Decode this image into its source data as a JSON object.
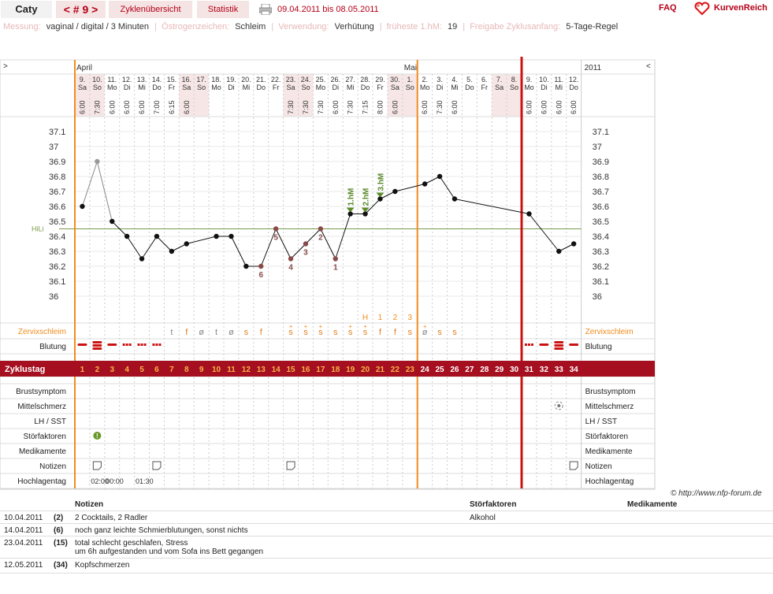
{
  "topbar": {
    "user": "Caty",
    "cycle": "< # 9 >",
    "overview": "Zyklenübersicht",
    "statistics": "Statistik",
    "date_range": "09.04.2011 bis 08.05.2011",
    "faq": "FAQ",
    "logo": "KurvenReich"
  },
  "info": {
    "measure_label": "Messung:",
    "measure_value": "vaginal / digital / 3 Minuten",
    "estrogen_label": "Östrogenzeichen:",
    "estrogen_value": "Schleim",
    "use_label": "Verwendung:",
    "use_value": "Verhütung",
    "earliest_label": "früheste 1.hM:",
    "earliest_value": "19",
    "release_label": "Freigabe Zyklusanfang:",
    "release_value": "5-Tage-Regel"
  },
  "chart_data": {
    "type": "line",
    "corner_left": ">",
    "corner_right": "<",
    "months": [
      {
        "label": "April",
        "day": 1
      },
      {
        "label": "Mai",
        "day": 23
      }
    ],
    "year_label": "2011",
    "dates": [
      "9.",
      "10.",
      "11.",
      "12.",
      "13.",
      "14.",
      "15.",
      "16.",
      "17.",
      "18.",
      "19.",
      "20.",
      "21.",
      "22.",
      "23.",
      "24.",
      "25.",
      "26.",
      "27.",
      "28.",
      "29.",
      "30.",
      "1.",
      "2.",
      "3.",
      "4.",
      "5.",
      "6.",
      "7.",
      "8.",
      "9.",
      "10.",
      "11.",
      "12."
    ],
    "weekdays": [
      "Sa",
      "So",
      "Mo",
      "Di",
      "Mi",
      "Do",
      "Fr",
      "Sa",
      "So",
      "Mo",
      "Di",
      "Mi",
      "Do",
      "Fr",
      "Sa",
      "So",
      "Mo",
      "Di",
      "Mi",
      "Do",
      "Fr",
      "Sa",
      "So",
      "Mo",
      "Di",
      "Mi",
      "Do",
      "Fr",
      "Sa",
      "So",
      "Mo",
      "Di",
      "Mi",
      "Do"
    ],
    "times": [
      "6:00",
      "7:30",
      "6:00",
      "6:00",
      "6:00",
      "7:00",
      "6:15",
      "6:00",
      "",
      "",
      "",
      "",
      "",
      "",
      "7:30",
      "7:30",
      "7:30",
      "6:00",
      "7:30",
      "7:15",
      "8:00",
      "6:00",
      "",
      "6:00",
      "7:30",
      "6:00",
      "",
      "",
      "",
      "",
      "6:00",
      "6:00",
      "6:00",
      "6:00"
    ],
    "yticks": [
      "37.1",
      "37",
      "36.9",
      "36.8",
      "36.7",
      "36.6",
      "36.5",
      "36.4",
      "36.3",
      "36.2",
      "36.1",
      "36"
    ],
    "ymin": 35.9,
    "ymax": 37.2,
    "hili_label": "HiLi",
    "hili_value": 36.45,
    "temperatures": [
      36.6,
      36.9,
      36.5,
      36.4,
      36.25,
      36.4,
      36.3,
      36.35,
      null,
      36.4,
      36.4,
      36.2,
      36.2,
      36.45,
      36.25,
      36.35,
      36.45,
      36.25,
      36.55,
      36.55,
      36.65,
      36.7,
      null,
      36.75,
      36.8,
      36.65,
      null,
      null,
      null,
      null,
      36.55,
      null,
      36.3,
      36.35
    ],
    "excluded_days": [
      2
    ],
    "lower_markers": [
      {
        "day": 14,
        "label": "5",
        "pos": "below"
      },
      {
        "day": 13,
        "label": "6",
        "pos": "below"
      },
      {
        "day": 15,
        "label": "4",
        "pos": "below"
      },
      {
        "day": 16,
        "label": "3",
        "pos": "below"
      },
      {
        "day": 17,
        "label": "2",
        "pos": "below"
      },
      {
        "day": 18,
        "label": "1",
        "pos": "below"
      }
    ],
    "high_markers": [
      {
        "day": 19,
        "label": "1.hM"
      },
      {
        "day": 20,
        "label": "2.hM"
      },
      {
        "day": 21,
        "label": "3.hM"
      }
    ],
    "mucus_peak": [
      {
        "day": 20,
        "label": "H"
      },
      {
        "day": 21,
        "label": "1"
      },
      {
        "day": 22,
        "label": "2"
      },
      {
        "day": 23,
        "label": "3"
      }
    ],
    "mucus": [
      "",
      "",
      "",
      "",
      "",
      "",
      "t",
      "f",
      "ø",
      "t",
      "ø",
      "s",
      "f",
      "",
      "s",
      "s",
      "s",
      "s",
      "s",
      "s",
      "f",
      "f",
      "s",
      "ø",
      "s",
      "s",
      "",
      "",
      "",
      "",
      "",
      "",
      "",
      ""
    ],
    "mucus_plus": [
      15,
      16,
      17,
      19,
      20,
      24
    ],
    "mucus_colors": {
      "t": "#888",
      "ø": "#888",
      "f": "#e08020",
      "s": "#e08020"
    },
    "bleeding": [
      "med",
      "heavy",
      "med",
      "light",
      "light",
      "light",
      "",
      "",
      "",
      "",
      "",
      "",
      "",
      "",
      "",
      "",
      "",
      "",
      "",
      "",
      "",
      "",
      "",
      "",
      "",
      "",
      "",
      "",
      "",
      "",
      "light",
      "med",
      "heavy",
      "med"
    ],
    "cycle_label": "Zyklustag",
    "cycle_days": [
      "1",
      "2",
      "3",
      "4",
      "5",
      "6",
      "7",
      "8",
      "9",
      "10",
      "11",
      "12",
      "13",
      "14",
      "15",
      "16",
      "17",
      "18",
      "19",
      "20",
      "21",
      "22",
      "23",
      "24",
      "25",
      "26",
      "27",
      "28",
      "29",
      "30",
      "31",
      "32",
      "33",
      "34"
    ],
    "row_labels": [
      "Zervixschleim",
      "Blutung",
      "Brustsymptom",
      "Mittelschmerz",
      "LH / SST",
      "Störfaktoren",
      "Medikamente",
      "Notizen",
      "Hochlagentag"
    ],
    "notes_days": [
      2,
      6,
      15,
      34
    ],
    "disturbance_days": [
      2
    ],
    "midpain_days": [
      33
    ],
    "highlag_times": [
      {
        "day": 2,
        "text": "02:00"
      },
      {
        "day": 3,
        "text": "00:00"
      },
      {
        "day": 5,
        "text": "01:30"
      }
    ],
    "orange_lines_days": [
      1,
      23
    ],
    "red_line_day": 30
  },
  "copyright": "© http://www.nfp-forum.de",
  "notes": {
    "headers": {
      "notes": "Notizen",
      "disturbance": "Störfaktoren",
      "medication": "Medikamente"
    },
    "rows": [
      {
        "date": "10.04.2011",
        "day": "(2)",
        "text": "2 Cocktails, 2 Radler",
        "text2": "",
        "disturbance": "Alkohol"
      },
      {
        "date": "14.04.2011",
        "day": "(6)",
        "text": "noch ganz leichte Schmierblutungen, sonst nichts",
        "text2": "",
        "disturbance": ""
      },
      {
        "date": "23.04.2011",
        "day": "(15)",
        "text": "total schlecht geschlafen, Stress",
        "text2": "um 6h aufgestanden und vom Sofa ins Bett gegangen",
        "disturbance": ""
      },
      {
        "date": "12.05.2011",
        "day": "(34)",
        "text": "Kopfschmerzen",
        "text2": "",
        "disturbance": ""
      }
    ]
  }
}
